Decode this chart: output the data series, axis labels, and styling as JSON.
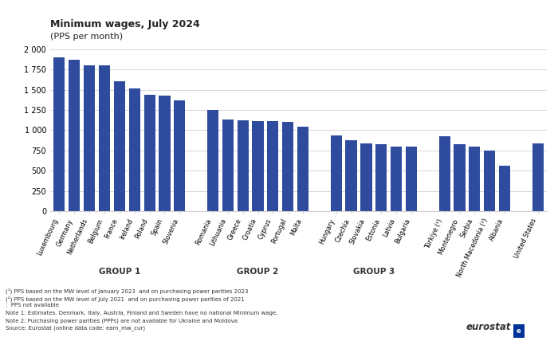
{
  "title": "Minimum wages, July 2024",
  "subtitle": "(PPS per month)",
  "bar_color": "#2E4B9E",
  "categories": [
    "Luxembourg",
    "Germany",
    "Netherlands",
    "Belgium",
    "France",
    "Ireland",
    "Poland",
    "Spain",
    "Slovenia",
    "Romania",
    "Lithuania",
    "Greece",
    "Croatia",
    "Cyprus",
    "Portugal",
    "Malta",
    "Hungary",
    "Czechia",
    "Slovakia",
    "Estonia",
    "Latvia",
    "Bulgaria",
    "Türkiye (¹)",
    "Montenegro",
    "Serbia",
    "North Macedonia (²)",
    "Albania",
    "United States"
  ],
  "values": [
    1900,
    1870,
    1800,
    1800,
    1600,
    1510,
    1440,
    1430,
    1370,
    1250,
    1130,
    1120,
    1115,
    1110,
    1100,
    1045,
    940,
    880,
    840,
    830,
    800,
    800,
    930,
    830,
    800,
    750,
    560,
    840
  ],
  "group_sizes": [
    9,
    7,
    6,
    5,
    1
  ],
  "group_labels": [
    "GROUP 1",
    "GROUP 2",
    "GROUP 3"
  ],
  "group_label_indices": [
    0,
    1,
    2
  ],
  "ylim": [
    0,
    2100
  ],
  "yticks": [
    0,
    250,
    500,
    750,
    1000,
    1250,
    1500,
    1750,
    2000
  ],
  "ytick_labels": [
    "0",
    "250",
    "500",
    "750",
    "1 000",
    "1 250",
    "1 500",
    "1 750",
    "2 000"
  ],
  "footnote_lines": [
    "(¹) PPS based on the MW level of January 2023  and on purchasing power parities 2023",
    "(²) PPS based on the MW level of July 2021  and on purchasing power parities of 2021",
    ":  PPS not available",
    "Note 1: Estimates. Denmark, Italy, Austria, Finland and Sweden have no national Minimum wage.",
    "Note 2: Purchasing power parities (PPPs) are not available for Ukraine and Moldova",
    "Source: Eurostat (online data code: earn_mw_cur)"
  ]
}
